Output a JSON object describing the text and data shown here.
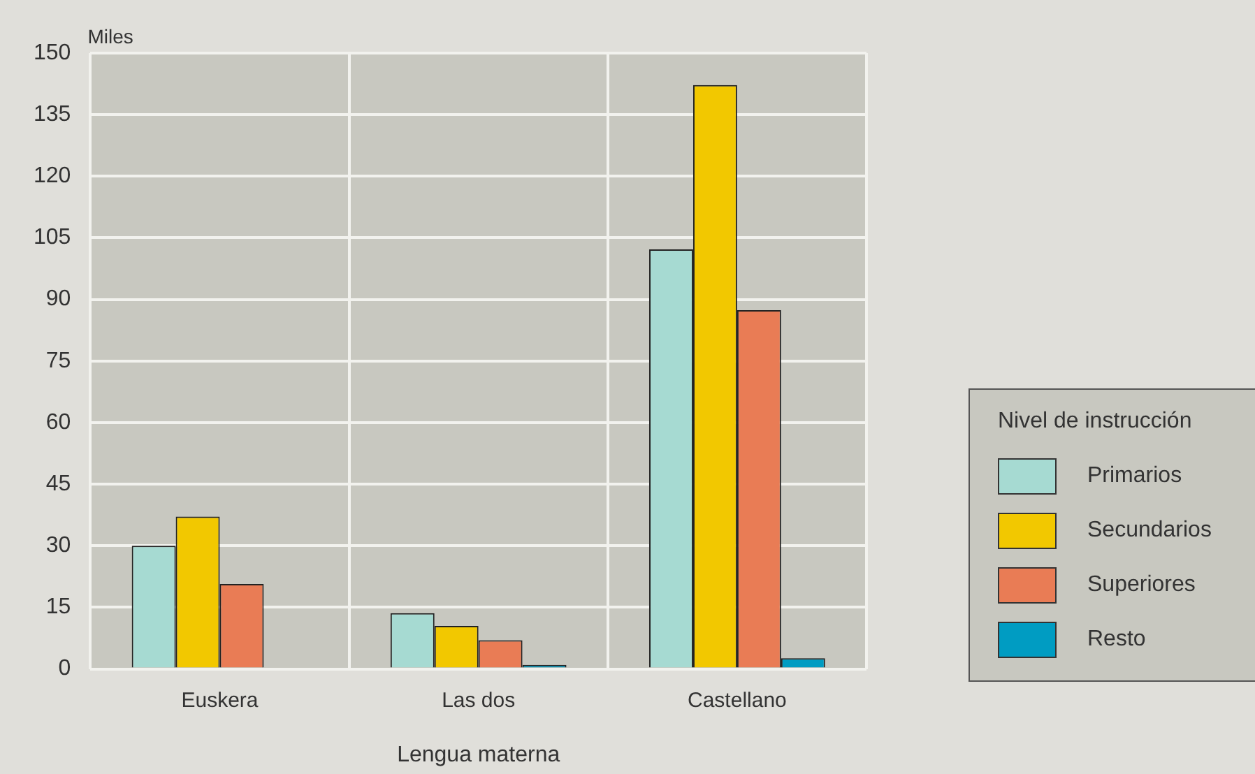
{
  "chart_data": {
    "type": "bar",
    "ylabel": "Miles",
    "xlabel": "Lengua materna",
    "legend_title": "Nivel de instrucción",
    "categories": [
      "Euskera",
      "Las dos",
      "Castellano"
    ],
    "series": [
      {
        "name": "Primarios",
        "color": "#a6dad2",
        "values": [
          30.0,
          13.6,
          102.2
        ]
      },
      {
        "name": "Secundarios",
        "color": "#f2c800",
        "values": [
          37.1,
          10.5,
          142.2
        ]
      },
      {
        "name": "Superiores",
        "color": "#e97c55",
        "values": [
          20.7,
          7.0,
          87.4
        ]
      },
      {
        "name": "Resto",
        "color": "#009cc2",
        "values": [
          null,
          1.0,
          2.6
        ]
      }
    ],
    "ylim": [
      0,
      150
    ],
    "yticks": [
      0,
      15,
      30,
      45,
      60,
      75,
      90,
      105,
      120,
      135,
      150
    ],
    "grid": true,
    "legend": "bottom right"
  }
}
